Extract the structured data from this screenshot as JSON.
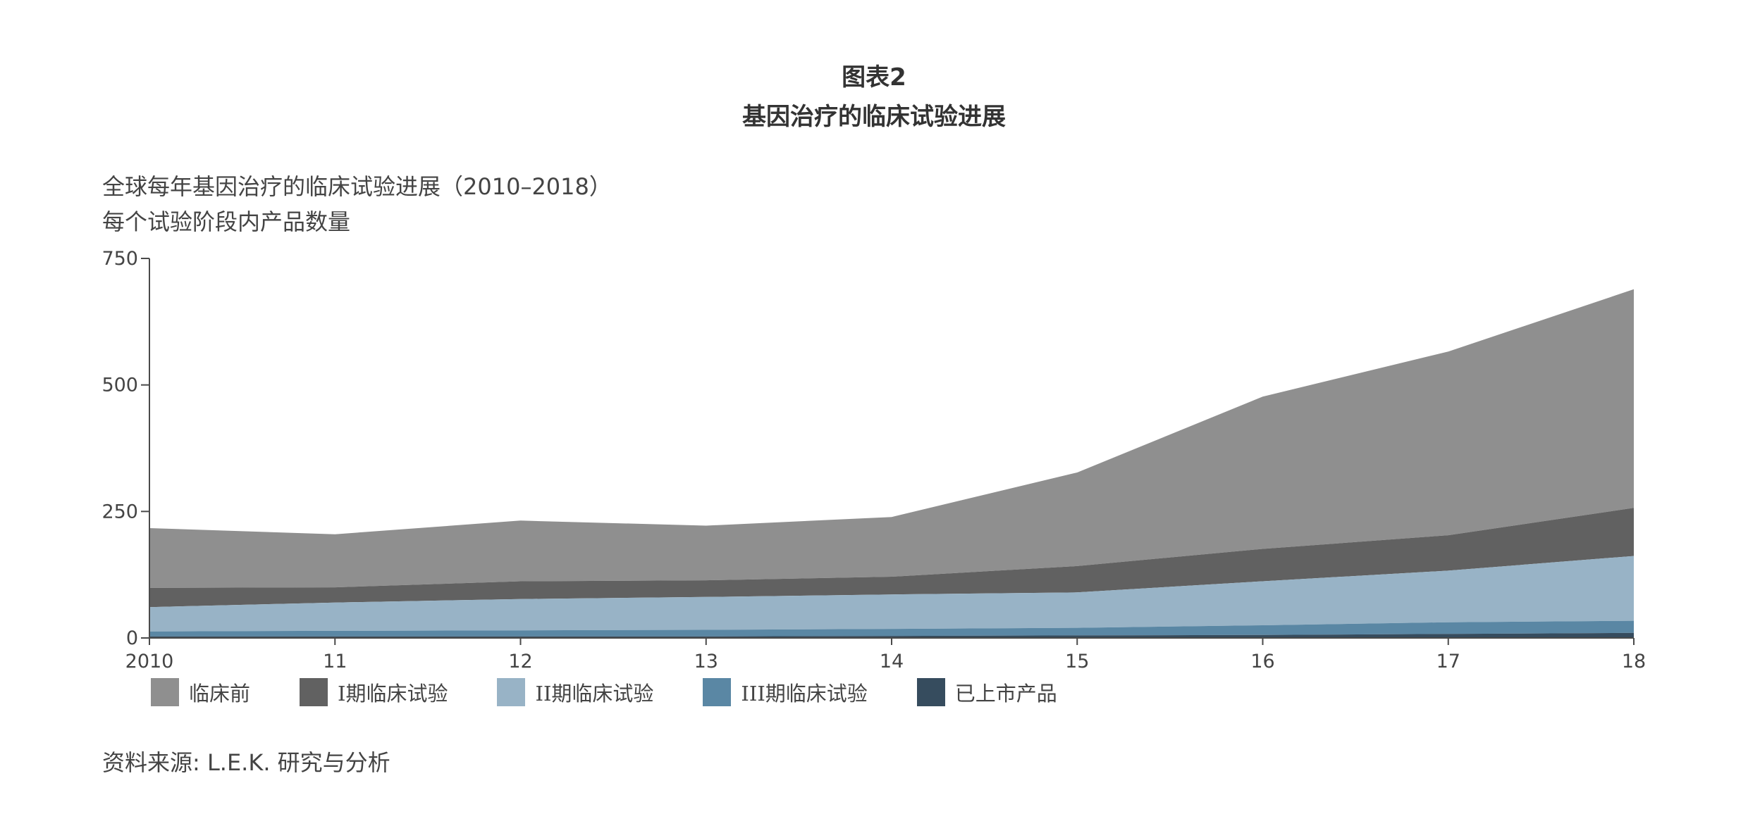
{
  "figure": {
    "number": "图表2",
    "title": "基因治疗的临床试验进展"
  },
  "chart_data": {
    "type": "area",
    "stacked": true,
    "subtitle_line1": "全球每年基因治疗的临床试验进展（2010–2018）",
    "subtitle_line2": "每个试验阶段内产品数量",
    "categories": [
      "2010",
      "11",
      "12",
      "13",
      "14",
      "15",
      "16",
      "17",
      "18"
    ],
    "yticks": [
      "0",
      "250",
      "500",
      "750"
    ],
    "ylim": [
      0,
      750
    ],
    "legend_position": "bottom",
    "grid": false,
    "series": [
      {
        "name": "已上市产品",
        "color": "#364c5e",
        "values": [
          3,
          3,
          3,
          3,
          4,
          5,
          6,
          8,
          10
        ]
      },
      {
        "name": "III期临床试验",
        "color": "#5a87a4",
        "values": [
          10,
          11,
          12,
          13,
          14,
          15,
          19,
          23,
          24
        ]
      },
      {
        "name": "II期临床试验",
        "color": "#98b3c6",
        "values": [
          48,
          56,
          62,
          65,
          68,
          70,
          87,
          102,
          128
        ]
      },
      {
        "name": "I期临床试验",
        "color": "#616161",
        "values": [
          38,
          30,
          35,
          33,
          35,
          52,
          64,
          70,
          95
        ]
      },
      {
        "name": "临床前",
        "color": "#8f8f8f",
        "values": [
          118,
          105,
          120,
          108,
          118,
          185,
          301,
          363,
          432
        ]
      }
    ],
    "legend_order": [
      "临床前",
      "I期临床试验",
      "II期临床试验",
      "III期临床试验",
      "已上市产品"
    ]
  },
  "source": "资料来源: L.E.K. 研究与分析"
}
